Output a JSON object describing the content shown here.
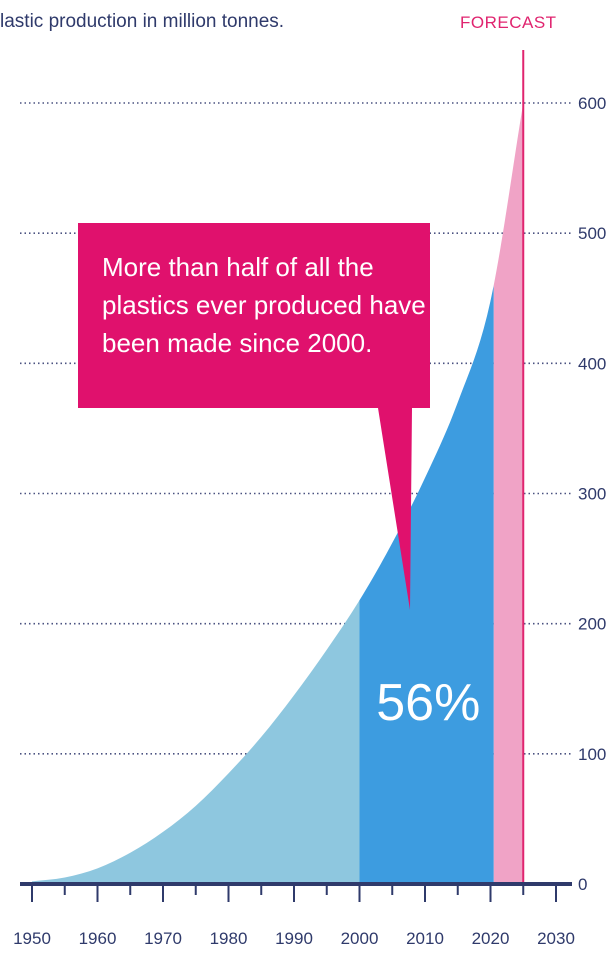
{
  "chart_data": {
    "type": "area",
    "subtitle": "lastic production in million tonnes.",
    "forecast_label": "FORECAST",
    "x_ticks": [
      "1950",
      "1960",
      "1970",
      "1980",
      "1990",
      "2000",
      "2010",
      "2020",
      "2030"
    ],
    "x_tick_values": [
      1950,
      1960,
      1970,
      1980,
      1990,
      2000,
      2010,
      2020,
      2030
    ],
    "y_ticks": [
      "0",
      "100",
      "200",
      "300",
      "400",
      "500",
      "600"
    ],
    "y_tick_values": [
      0,
      100,
      200,
      300,
      400,
      500,
      600
    ],
    "xlim": [
      1950,
      2030
    ],
    "ylim": [
      0,
      600
    ],
    "grid": true,
    "series": [
      {
        "x": [
          1950,
          1955,
          1960,
          1965,
          1970,
          1975,
          1980,
          1985,
          1990,
          1995,
          2000,
          2005,
          2010,
          2015,
          2020,
          2025
        ],
        "y": [
          2,
          5,
          12,
          24,
          40,
          60,
          85,
          113,
          145,
          180,
          218,
          262,
          312,
          370,
          448,
          600
        ]
      }
    ],
    "segments": [
      {
        "from": 1950,
        "to": 2000,
        "color": "#8ec7df"
      },
      {
        "from": 2000,
        "to": 2020.5,
        "color": "#3d9ce0"
      },
      {
        "from": 2020.5,
        "to": 2025,
        "color": "#f0a3c6"
      }
    ],
    "forecast_line_x": 2025,
    "annotation": {
      "lines": [
        "More than half of all the",
        "plastics ever produced have",
        "been made since 2000."
      ],
      "color": "#e0116d"
    },
    "share_label": "56%",
    "colors": {
      "axis": "#2f3a6b",
      "forecast": "#e0246f"
    }
  }
}
